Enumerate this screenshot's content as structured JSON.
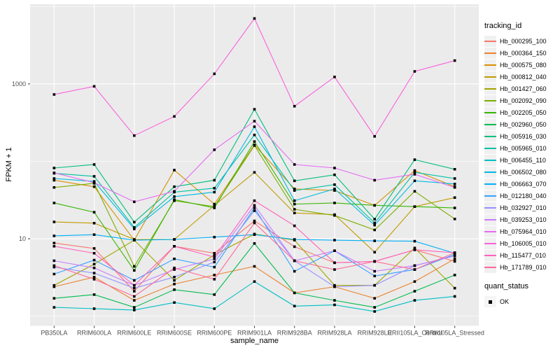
{
  "figure": {
    "background": "#FFFFFF",
    "panel_background": "#EBEBEB",
    "grid_color": "#FFFFFF",
    "tick_mark_color": "#333333",
    "tick_label_color": "#4D4D4D"
  },
  "chart_data": {
    "type": "line",
    "title": "",
    "xlabel": "sample_name",
    "ylabel": "FPKM + 1",
    "y_scale": "log10",
    "ylim": [
      0.75,
      10700
    ],
    "y_breaks_labeled": [
      "10",
      "1000"
    ],
    "y_breaks_values": [
      10,
      1000
    ],
    "y_minor_gridlines": [
      1,
      100,
      10000
    ],
    "grid": true,
    "legend_position": "right",
    "point_shape": "filled-square",
    "point_color": "#000000",
    "categories": [
      "PB350LA",
      "RRIM600LA",
      "RRIM600LE",
      "RRIM600SE",
      "RRIM600PE",
      "RRIM901LA",
      "RRIM928BA",
      "RRIM928LA",
      "RRIM928LE",
      "RRII105LA_Control",
      "RRII105LA_Stressed"
    ],
    "series": [
      {
        "name": "Hb_000295_100",
        "color": "#F8766D",
        "values": [
          8.8,
          7.5,
          2.1,
          8.0,
          6.5,
          17,
          7.9,
          4.9,
          5.1,
          7.2,
          5.1
        ]
      },
      {
        "name": "Hb_000364_150",
        "color": "#EA8331",
        "values": [
          2.4,
          3.2,
          1.6,
          2.6,
          3.4,
          4.4,
          2.0,
          2.4,
          1.7,
          2.8,
          5.5
        ]
      },
      {
        "name": "Hb_000575_080",
        "color": "#D89000",
        "values": [
          57,
          47,
          9.6,
          77,
          28,
          163,
          44,
          42,
          27,
          76,
          47
        ]
      },
      {
        "name": "Hb_000812_040",
        "color": "#C09B00",
        "values": [
          16.5,
          15.9,
          9.8,
          9.8,
          27,
          72,
          21.5,
          20.5,
          6.7,
          26,
          34
        ]
      },
      {
        "name": "Hb_001427_060",
        "color": "#A3A500",
        "values": [
          2.5,
          4.7,
          9.6,
          2.9,
          6.2,
          11.5,
          9.6,
          2.5,
          2.5,
          7.6,
          2.3
        ]
      },
      {
        "name": "Hb_002092_090",
        "color": "#7CAE00",
        "values": [
          46,
          52,
          4.4,
          31,
          26,
          160,
          24,
          20,
          13,
          41,
          18
        ]
      },
      {
        "name": "Hb_002205_050",
        "color": "#39B600",
        "values": [
          29,
          22,
          3.9,
          32,
          25,
          180,
          28,
          29,
          27,
          26,
          25
        ]
      },
      {
        "name": "Hb_002960_050",
        "color": "#00BB4E",
        "values": [
          1.7,
          1.9,
          1.3,
          2.2,
          1.9,
          8.7,
          2.0,
          1.6,
          1.3,
          2.1,
          3.4
        ]
      },
      {
        "name": "Hb_005916_030",
        "color": "#00BF7D",
        "values": [
          82,
          91,
          16.4,
          47,
          57,
          470,
          56,
          67,
          17.9,
          105,
          79
        ]
      },
      {
        "name": "Hb_005965_010",
        "color": "#00C1A3",
        "values": [
          70,
          64,
          14,
          40,
          45,
          219,
          42,
          50,
          16,
          72,
          60
        ]
      },
      {
        "name": "Hb_006455_110",
        "color": "#00BFC4",
        "values": [
          1.3,
          1.25,
          1.2,
          1.5,
          1.25,
          2.8,
          1.35,
          1.4,
          1.15,
          1.6,
          1.8
        ]
      },
      {
        "name": "Hb_006502_080",
        "color": "#00BAE0",
        "values": [
          60,
          55,
          13.4,
          35,
          40,
          280,
          31,
          44,
          15,
          56,
          51
        ]
      },
      {
        "name": "Hb_006663_070",
        "color": "#00B0F6",
        "values": [
          10.9,
          11.3,
          9.6,
          9.8,
          10.5,
          11.3,
          9.8,
          9.6,
          9.4,
          9.3,
          6.5
        ]
      },
      {
        "name": "Hb_012180_040",
        "color": "#35A2FF",
        "values": [
          3.5,
          5.3,
          2.9,
          5.5,
          4.3,
          25,
          3.8,
          7.0,
          3.3,
          4.0,
          6.3
        ]
      },
      {
        "name": "Hb_032927_010",
        "color": "#9590FF",
        "values": [
          4.3,
          3.6,
          2.3,
          3.2,
          5.0,
          23,
          5.2,
          2.4,
          2.5,
          4.5,
          6.0
        ]
      },
      {
        "name": "Hb_039253_010",
        "color": "#C77CFF",
        "values": [
          5.2,
          4.2,
          2.5,
          4.0,
          5.5,
          27,
          5.2,
          7.0,
          3.8,
          4.5,
          6.0
        ]
      },
      {
        "name": "Hb_075964_010",
        "color": "#E76BF3",
        "values": [
          71,
          53,
          30,
          41,
          141,
          330,
          91,
          82,
          57,
          68,
          46
        ]
      },
      {
        "name": "Hb_106005_010",
        "color": "#FA62DB",
        "values": [
          730,
          930,
          215,
          380,
          1350,
          7000,
          515,
          1230,
          210,
          1450,
          2000
        ]
      },
      {
        "name": "Hb_115477_010",
        "color": "#FF62BC",
        "values": [
          8.0,
          6.5,
          2.5,
          8.0,
          5.8,
          31,
          14.7,
          4.9,
          5.1,
          7.2,
          6.6
        ]
      },
      {
        "name": "Hb_171789_010",
        "color": "#FF6A98",
        "values": [
          4.5,
          3.0,
          1.8,
          4.2,
          3.0,
          16,
          5.2,
          4.0,
          5.1,
          4.0,
          6.6
        ]
      }
    ]
  },
  "legend_tracking": {
    "title": "tracking_id"
  },
  "legend_quant": {
    "title": "quant_status",
    "items": [
      {
        "label": "OK"
      }
    ]
  }
}
